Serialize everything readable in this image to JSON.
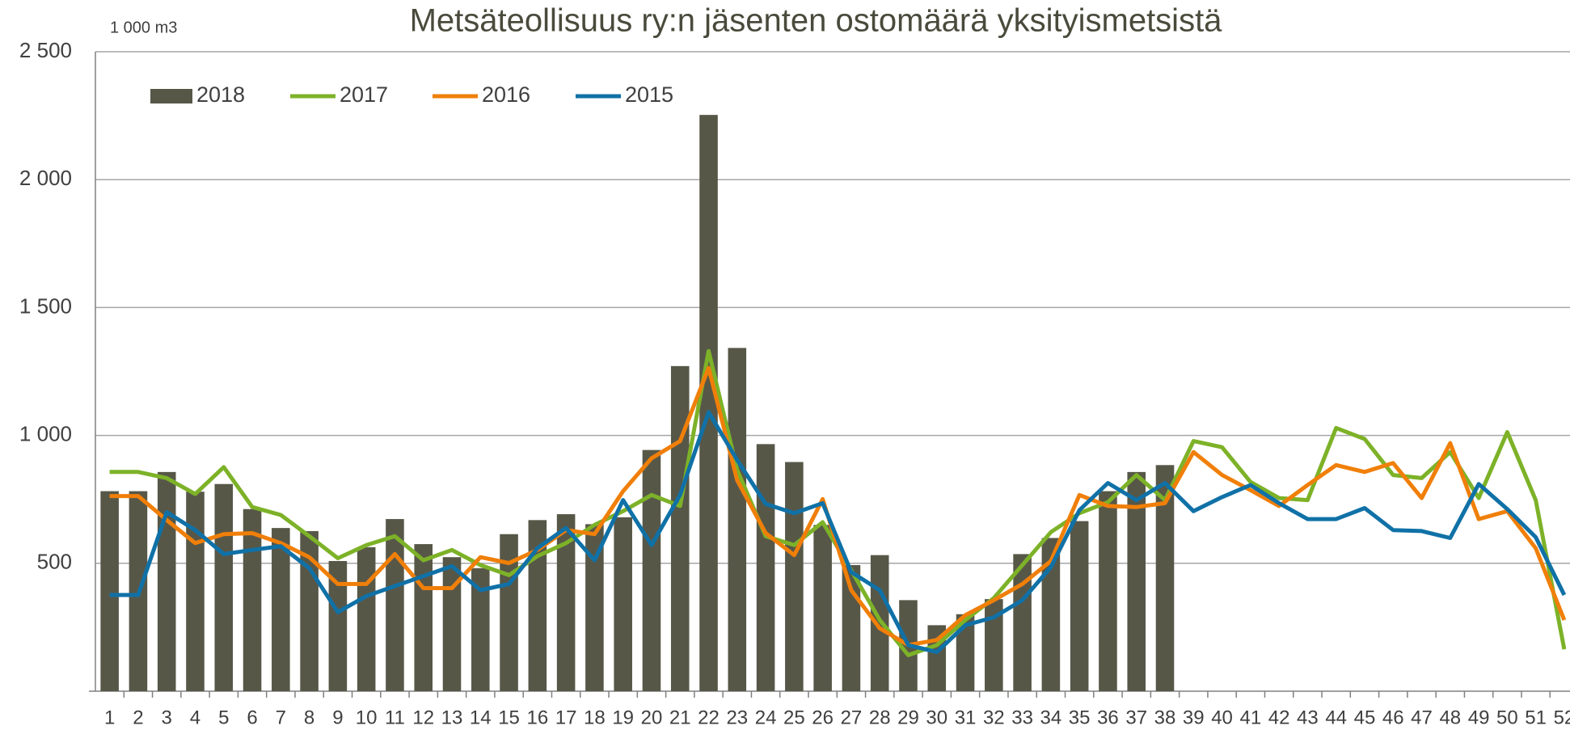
{
  "chart_data": {
    "type": "bar",
    "title": "Metsäteollisuus ry:n jäsenten ostomäärä yksityismetsistä",
    "y_unit_label": "1 000 m3",
    "categories": [
      "1",
      "2",
      "3",
      "4",
      "5",
      "6",
      "7",
      "8",
      "9",
      "10",
      "11",
      "12",
      "13",
      "14",
      "15",
      "16",
      "17",
      "18",
      "19",
      "20",
      "21",
      "22",
      "23",
      "24",
      "25",
      "26",
      "27",
      "28",
      "29",
      "30",
      "31",
      "32",
      "33",
      "34",
      "35",
      "36",
      "37",
      "38",
      "39",
      "40",
      "41",
      "42",
      "43",
      "44",
      "45",
      "46",
      "47",
      "48",
      "49",
      "50",
      "51",
      "52"
    ],
    "series": [
      {
        "name": "2018",
        "type": "bar",
        "color": "#575748",
        "values": [
          782,
          782,
          857,
          780,
          810,
          712,
          638,
          626,
          509,
          563,
          673,
          575,
          524,
          481,
          614,
          669,
          692,
          653,
          680,
          943,
          1271,
          2253,
          1342,
          966,
          896,
          650,
          493,
          532,
          356,
          258,
          301,
          360,
          536,
          599,
          665,
          782,
          857,
          884,
          null,
          null,
          null,
          null,
          null,
          null,
          null,
          null,
          null,
          null,
          null,
          null,
          null,
          null
        ]
      },
      {
        "name": "2017",
        "type": "line",
        "color": "#7db228",
        "values": [
          857,
          857,
          833,
          771,
          876,
          720,
          689,
          606,
          520,
          571,
          606,
          512,
          552,
          493,
          454,
          528,
          579,
          650,
          704,
          767,
          724,
          1330,
          865,
          606,
          571,
          661,
          473,
          278,
          141,
          180,
          278,
          364,
          493,
          622,
          696,
          739,
          845,
          747,
          978,
          954,
          818,
          755,
          747,
          1029,
          986,
          845,
          833,
          935,
          755,
          1013,
          747,
          164
        ]
      },
      {
        "name": "2016",
        "type": "line",
        "color": "#f07f09",
        "values": [
          763,
          763,
          669,
          579,
          614,
          618,
          579,
          524,
          419,
          419,
          536,
          403,
          403,
          524,
          501,
          552,
          630,
          614,
          782,
          911,
          978,
          1264,
          825,
          618,
          532,
          751,
          395,
          246,
          180,
          200,
          297,
          356,
          419,
          509,
          767,
          724,
          720,
          735,
          935,
          845,
          786,
          724,
          806,
          884,
          857,
          892,
          755,
          970,
          673,
          704,
          559,
          278
        ]
      },
      {
        "name": "2015",
        "type": "line",
        "color": "#1071a7",
        "values": [
          376,
          376,
          700,
          630,
          536,
          552,
          567,
          481,
          309,
          372,
          411,
          450,
          489,
          395,
          419,
          559,
          638,
          512,
          747,
          571,
          767,
          1091,
          904,
          732,
          696,
          735,
          466,
          395,
          180,
          153,
          258,
          289,
          356,
          485,
          708,
          814,
          747,
          814,
          704,
          759,
          806,
          735,
          673,
          673,
          716,
          630,
          626,
          599,
          810,
          712,
          602,
          376
        ]
      }
    ],
    "ylim": [
      0,
      2500
    ],
    "yticks": [
      {
        "value": 500,
        "label": "500"
      },
      {
        "value": 1000,
        "label": "1 000"
      },
      {
        "value": 1500,
        "label": "1 500"
      },
      {
        "value": 2000,
        "label": "2 000"
      },
      {
        "value": 2500,
        "label": "2 500"
      }
    ],
    "grid": true,
    "legend": "top-left"
  }
}
